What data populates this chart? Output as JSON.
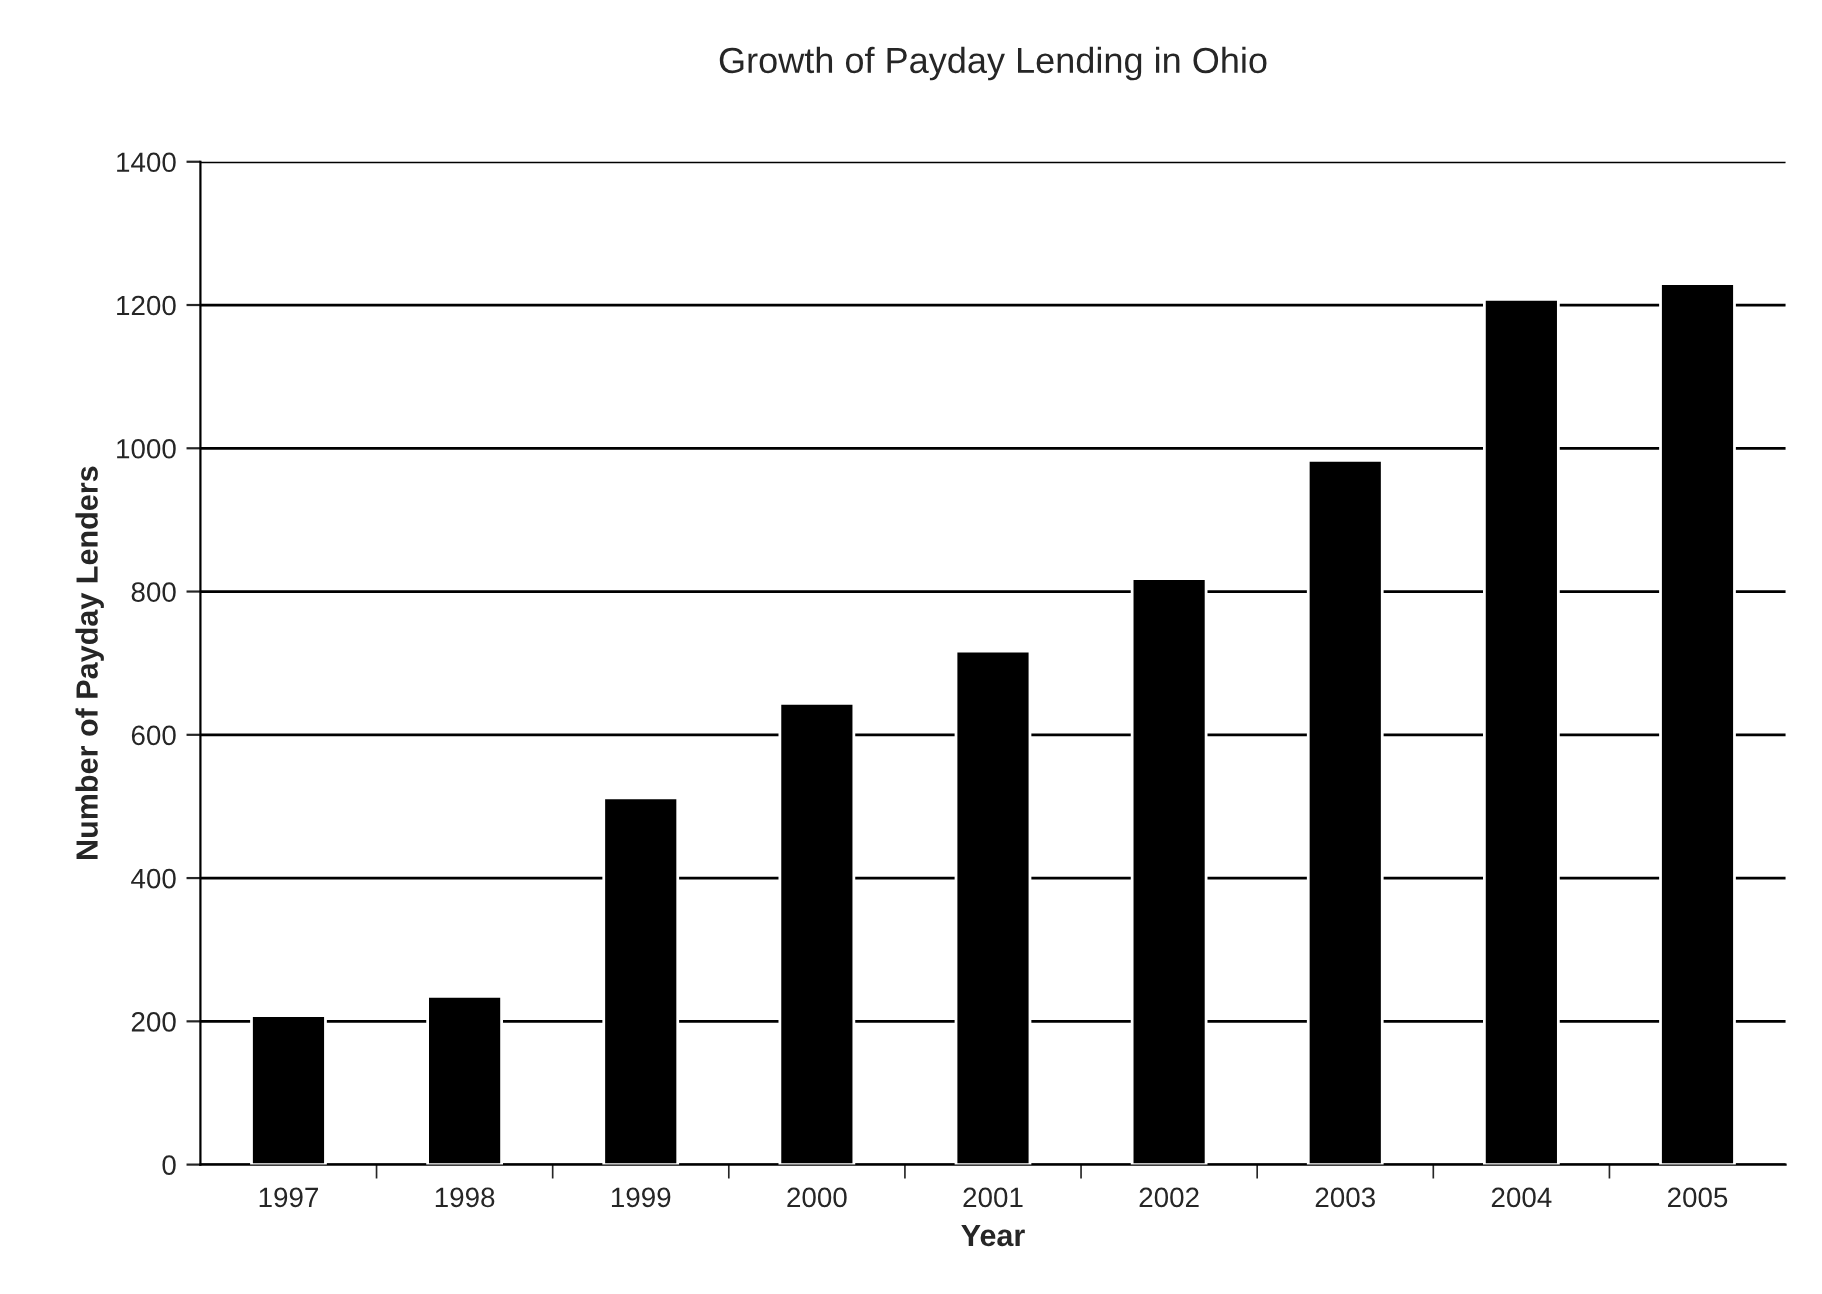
{
  "chart_data": {
    "type": "bar",
    "title": "Growth of Payday Lending in Ohio",
    "xlabel": "Year",
    "ylabel": "Number of Payday Lenders",
    "categories": [
      "1997",
      "1998",
      "1999",
      "2000",
      "2001",
      "2002",
      "2003",
      "2004",
      "2005"
    ],
    "values": [
      208,
      235,
      512,
      644,
      717,
      818,
      983,
      1208,
      1230
    ],
    "color": "#000000",
    "ylim": [
      0,
      1400
    ],
    "yticks": [
      0,
      200,
      400,
      600,
      800,
      1000,
      1200,
      1400
    ],
    "grid": "y",
    "legend": false
  }
}
